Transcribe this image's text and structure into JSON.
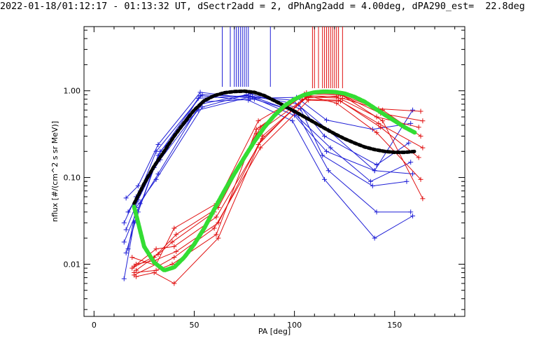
{
  "title": "2022-01-18/01:12:17 - 01:13:32 UT, dSectr2add = 2, dPhAng2add = 4.00deg, dPA290_est=  22.8deg",
  "chart_data": {
    "type": "line",
    "title": "2022-01-18/01:12:17 - 01:13:32 UT, dSectr2add = 2, dPhAng2add = 4.00deg, dPA290_est=  22.8deg",
    "xlabel": "PA [deg]",
    "ylabel": "nflux [#/(cm^2 s sr MeV)]",
    "xlim": [
      -5,
      185
    ],
    "ylim": [
      0.0025,
      5.5
    ],
    "yscale": "log",
    "x_ticks": [
      0,
      50,
      100,
      150
    ],
    "x_tick_labels": [
      "0",
      "50",
      "100",
      "150"
    ],
    "y_ticks": [
      0.01,
      0.1,
      1.0
    ],
    "y_tick_labels": [
      "0.01",
      "0.10",
      "1.00"
    ],
    "grid": false,
    "colors": {
      "blue": "#1f1fd6",
      "red": "#e01010",
      "black_fit": "#000000",
      "green_fit": "#33dd33"
    },
    "top_markers": {
      "blue": [
        64,
        68,
        70,
        71,
        72,
        73,
        74,
        75,
        76,
        77,
        88
      ],
      "red": [
        109,
        110,
        112,
        114,
        115,
        116,
        117,
        118,
        119,
        120,
        121,
        122,
        124
      ]
    },
    "blue_series": [
      {
        "x": [
          16,
          22,
          32,
          53,
          78,
          101,
          116,
          139,
          158
        ],
        "y": [
          0.058,
          0.08,
          0.24,
          0.96,
          0.82,
          0.84,
          0.46,
          0.36,
          0.42
        ]
      },
      {
        "x": [
          17,
          23,
          31,
          54,
          79,
          99,
          117,
          140,
          159
        ],
        "y": [
          0.04,
          0.07,
          0.2,
          0.9,
          0.85,
          0.78,
          0.35,
          0.12,
          0.6
        ]
      },
      {
        "x": [
          15,
          21,
          33,
          52,
          77,
          102,
          115,
          141,
          157
        ],
        "y": [
          0.03,
          0.06,
          0.16,
          0.82,
          0.88,
          0.7,
          0.3,
          0.14,
          0.25
        ]
      },
      {
        "x": [
          16,
          22,
          30,
          55,
          80,
          98,
          118,
          138,
          158
        ],
        "y": [
          0.025,
          0.055,
          0.13,
          0.75,
          0.8,
          0.6,
          0.22,
          0.09,
          0.15
        ]
      },
      {
        "x": [
          15,
          23,
          32,
          53,
          76,
          100,
          116,
          140,
          159
        ],
        "y": [
          0.018,
          0.05,
          0.11,
          0.7,
          0.9,
          0.52,
          0.2,
          0.12,
          0.11
        ]
      },
      {
        "x": [
          17,
          21,
          31,
          54,
          78,
          103,
          114,
          139,
          156
        ],
        "y": [
          0.015,
          0.045,
          0.095,
          0.65,
          0.92,
          0.62,
          0.18,
          0.08,
          0.09
        ]
      },
      {
        "x": [
          16,
          22,
          33,
          52,
          79,
          101,
          117,
          141,
          158
        ],
        "y": [
          0.0135,
          0.04,
          0.2,
          0.6,
          0.86,
          0.56,
          0.12,
          0.04,
          0.04
        ]
      },
      {
        "x": [
          15,
          20,
          32,
          53,
          77,
          99,
          115,
          140,
          159
        ],
        "y": [
          0.0068,
          0.03,
          0.18,
          0.88,
          0.78,
          0.45,
          0.095,
          0.02,
          0.036
        ]
      }
    ],
    "red_series": [
      {
        "x": [
          20,
          31,
          40,
          61,
          82,
          106,
          122,
          142,
          163
        ],
        "y": [
          0.0075,
          0.01,
          0.026,
          0.05,
          0.45,
          0.95,
          0.92,
          0.62,
          0.58
        ]
      },
      {
        "x": [
          21,
          30,
          41,
          62,
          83,
          105,
          123,
          143,
          164
        ],
        "y": [
          0.0085,
          0.012,
          0.022,
          0.045,
          0.38,
          0.92,
          0.9,
          0.55,
          0.45
        ]
      },
      {
        "x": [
          19,
          32,
          39,
          60,
          81,
          107,
          121,
          141,
          162
        ],
        "y": [
          0.009,
          0.013,
          0.018,
          0.04,
          0.32,
          0.88,
          0.85,
          0.5,
          0.38
        ]
      },
      {
        "x": [
          20,
          31,
          40,
          61,
          84,
          106,
          124,
          144,
          163
        ],
        "y": [
          0.0095,
          0.015,
          0.016,
          0.035,
          0.28,
          0.85,
          0.82,
          0.6,
          0.3
        ]
      },
      {
        "x": [
          21,
          30,
          41,
          62,
          82,
          104,
          122,
          142,
          164
        ],
        "y": [
          0.01,
          0.011,
          0.014,
          0.03,
          0.24,
          0.8,
          0.78,
          0.42,
          0.22
        ]
      },
      {
        "x": [
          19,
          32,
          40,
          60,
          83,
          107,
          123,
          143,
          162
        ],
        "y": [
          0.012,
          0.0095,
          0.012,
          0.026,
          0.22,
          0.78,
          0.76,
          0.38,
          0.17
        ]
      },
      {
        "x": [
          20,
          31,
          39,
          61,
          81,
          105,
          121,
          141,
          163
        ],
        "y": [
          0.008,
          0.0085,
          0.01,
          0.022,
          0.36,
          0.9,
          0.72,
          0.33,
          0.095
        ]
      },
      {
        "x": [
          21,
          30,
          40,
          62,
          84,
          106,
          124,
          144,
          164
        ],
        "y": [
          0.0072,
          0.008,
          0.006,
          0.02,
          0.3,
          0.83,
          0.88,
          0.45,
          0.057
        ]
      }
    ],
    "black_fit": {
      "x": [
        20,
        25,
        30,
        35,
        40,
        45,
        50,
        55,
        60,
        65,
        70,
        75,
        80,
        85,
        90,
        95,
        100,
        105,
        110,
        115,
        120,
        125,
        130,
        135,
        140,
        145,
        150,
        155,
        160
      ],
      "y": [
        0.05,
        0.085,
        0.135,
        0.2,
        0.3,
        0.43,
        0.6,
        0.77,
        0.88,
        0.95,
        0.98,
        0.99,
        0.96,
        0.88,
        0.77,
        0.67,
        0.58,
        0.5,
        0.43,
        0.37,
        0.32,
        0.28,
        0.25,
        0.225,
        0.21,
        0.2,
        0.195,
        0.195,
        0.2
      ]
    },
    "green_fit": {
      "x": [
        20,
        25,
        30,
        35,
        40,
        45,
        50,
        55,
        60,
        65,
        70,
        75,
        80,
        85,
        90,
        95,
        100,
        105,
        110,
        115,
        120,
        125,
        130,
        135,
        140,
        145,
        150,
        155,
        160
      ],
      "y": [
        0.046,
        0.016,
        0.0105,
        0.0085,
        0.0092,
        0.012,
        0.017,
        0.026,
        0.043,
        0.07,
        0.11,
        0.17,
        0.26,
        0.38,
        0.52,
        0.67,
        0.8,
        0.9,
        0.96,
        0.98,
        0.97,
        0.93,
        0.85,
        0.75,
        0.63,
        0.53,
        0.45,
        0.38,
        0.33
      ]
    }
  }
}
